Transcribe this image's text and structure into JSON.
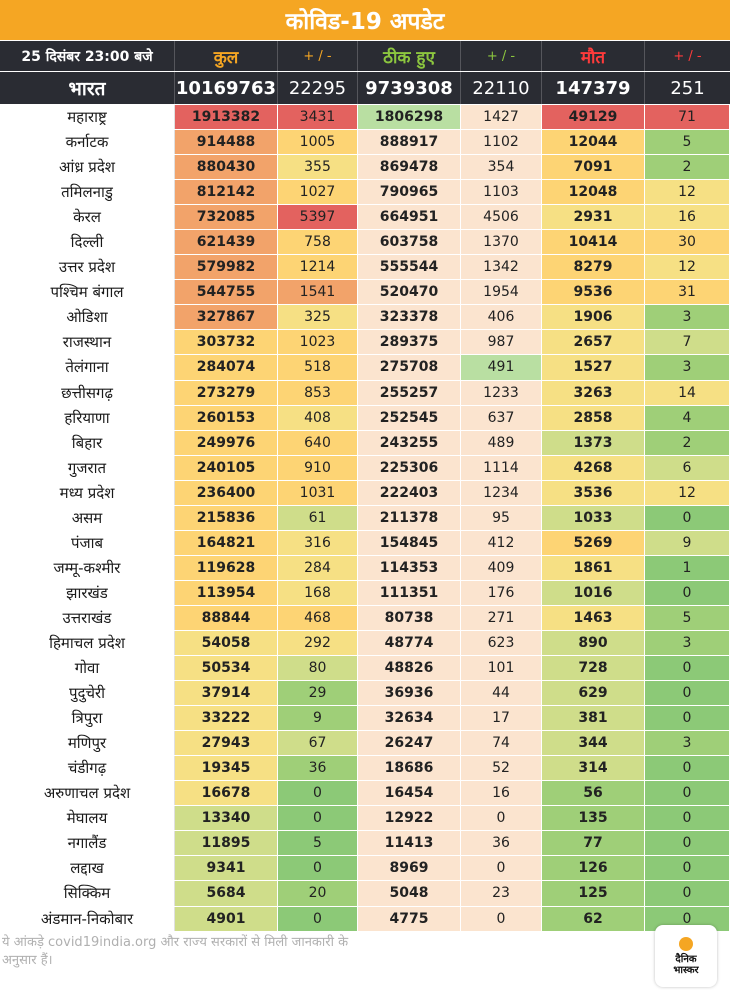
{
  "title": "कोविड-19 अपडेट",
  "header": {
    "date": "25 दिसंबर 23:00 बजे",
    "total": "कुल",
    "total_delta": "+ / -",
    "recovered": "ठीक हुए",
    "recovered_delta": "+ / -",
    "deaths": "मौत",
    "deaths_delta": "+ / -"
  },
  "colors": {
    "title_bar": "#f5a623",
    "header_bg": "#2a2c33",
    "orange_text": "#f5a623",
    "green_text": "#8cc63f",
    "red_text": "#ff3b3b",
    "scale": [
      "#e3625f",
      "#f2a36a",
      "#fdd474",
      "#f6e084",
      "#cfdd8a",
      "#9fcf78",
      "#8cc977"
    ],
    "recovered_base": "#fbe4cf",
    "recovered_green": "#b9dfa2"
  },
  "national": [
    "भारत",
    "10169763",
    "22295",
    "9739308",
    "22110",
    "147379",
    "251"
  ],
  "rows": [
    [
      "महाराष्ट्र",
      "1913382",
      "3431",
      "1806298",
      "1427",
      "49129",
      "71"
    ],
    [
      "कर्नाटक",
      "914488",
      "1005",
      "888917",
      "1102",
      "12044",
      "5"
    ],
    [
      "आंध्र प्रदेश",
      "880430",
      "355",
      "869478",
      "354",
      "7091",
      "2"
    ],
    [
      "तमिलनाडु",
      "812142",
      "1027",
      "790965",
      "1103",
      "12048",
      "12"
    ],
    [
      "केरल",
      "732085",
      "5397",
      "664951",
      "4506",
      "2931",
      "16"
    ],
    [
      "दिल्ली",
      "621439",
      "758",
      "603758",
      "1370",
      "10414",
      "30"
    ],
    [
      "उत्तर प्रदेश",
      "579982",
      "1214",
      "555544",
      "1342",
      "8279",
      "12"
    ],
    [
      "पश्चिम बंगाल",
      "544755",
      "1541",
      "520470",
      "1954",
      "9536",
      "31"
    ],
    [
      "ओडिशा",
      "327867",
      "325",
      "323378",
      "406",
      "1906",
      "3"
    ],
    [
      "राजस्थान",
      "303732",
      "1023",
      "289375",
      "987",
      "2657",
      "7"
    ],
    [
      "तेलंगाना",
      "284074",
      "518",
      "275708",
      "491",
      "1527",
      "3"
    ],
    [
      "छत्तीसगढ़",
      "273279",
      "853",
      "255257",
      "1233",
      "3263",
      "14"
    ],
    [
      "हरियाणा",
      "260153",
      "408",
      "252545",
      "637",
      "2858",
      "4"
    ],
    [
      "बिहार",
      "249976",
      "640",
      "243255",
      "489",
      "1373",
      "2"
    ],
    [
      "गुजरात",
      "240105",
      "910",
      "225306",
      "1114",
      "4268",
      "6"
    ],
    [
      "मध्य प्रदेश",
      "236400",
      "1031",
      "222403",
      "1234",
      "3536",
      "12"
    ],
    [
      "असम",
      "215836",
      "61",
      "211378",
      "95",
      "1033",
      "0"
    ],
    [
      "पंजाब",
      "164821",
      "316",
      "154845",
      "412",
      "5269",
      "9"
    ],
    [
      "जम्मू-कश्मीर",
      "119628",
      "284",
      "114353",
      "409",
      "1861",
      "1"
    ],
    [
      "झारखंड",
      "113954",
      "168",
      "111351",
      "176",
      "1016",
      "0"
    ],
    [
      "उत्तराखंड",
      "88844",
      "468",
      "80738",
      "271",
      "1463",
      "5"
    ],
    [
      "हिमाचल प्रदेश",
      "54058",
      "292",
      "48774",
      "623",
      "890",
      "3"
    ],
    [
      "गोवा",
      "50534",
      "80",
      "48826",
      "101",
      "728",
      "0"
    ],
    [
      "पुदुचेरी",
      "37914",
      "29",
      "36936",
      "44",
      "629",
      "0"
    ],
    [
      "त्रिपुरा",
      "33222",
      "9",
      "32634",
      "17",
      "381",
      "0"
    ],
    [
      "मणिपुर",
      "27943",
      "67",
      "26247",
      "74",
      "344",
      "3"
    ],
    [
      "चंडीगढ़",
      "19345",
      "36",
      "18686",
      "52",
      "314",
      "0"
    ],
    [
      "अरुणाचल प्रदेश",
      "16678",
      "0",
      "16454",
      "16",
      "56",
      "0"
    ],
    [
      "मेघालय",
      "13340",
      "0",
      "12922",
      "0",
      "135",
      "0"
    ],
    [
      "नगालैंड",
      "11895",
      "5",
      "11413",
      "36",
      "77",
      "0"
    ],
    [
      "लद्दाख",
      "9341",
      "0",
      "8969",
      "0",
      "126",
      "0"
    ],
    [
      "सिक्किम",
      "5684",
      "20",
      "5048",
      "23",
      "125",
      "0"
    ],
    [
      "अंडमान-निकोबार",
      "4901",
      "0",
      "4775",
      "0",
      "62",
      "0"
    ]
  ],
  "footer": "ये आंकड़े covid19india.org और राज्य सरकारों से मिली जानकारी के अनुसार हैं।",
  "logo": {
    "line1": "दैनिक",
    "line2": "भास्कर",
    "icon": "sun-icon"
  }
}
